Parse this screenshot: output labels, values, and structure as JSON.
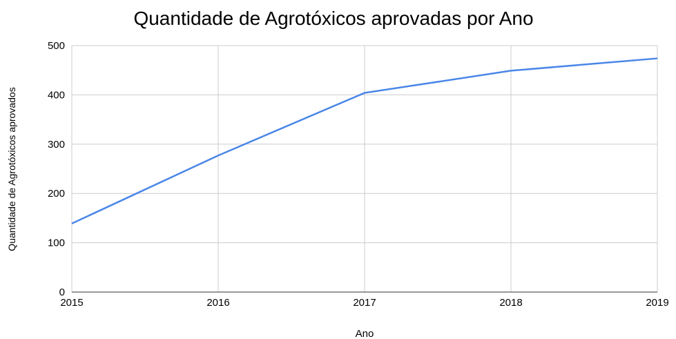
{
  "chart_data": {
    "type": "line",
    "title": "Quantidade de Agrotóxicos aprovadas por Ano",
    "x_label": "Ano",
    "y_label": "Quantidade de Agrotóxicos aprovados",
    "x": [
      2015,
      2016,
      2017,
      2018,
      2019
    ],
    "series": [
      {
        "name": "Quantidade de Agrotóxicos aprovados",
        "color": "#4a86e8",
        "values": [
          139,
          277,
          404,
          449,
          474
        ]
      }
    ],
    "xlim": [
      2015,
      2019
    ],
    "xticks": [
      2015,
      2016,
      2017,
      2018,
      2019
    ],
    "ylim": [
      0,
      500
    ],
    "yticks": [
      0,
      100,
      200,
      300,
      400,
      500
    ],
    "grid": true
  }
}
